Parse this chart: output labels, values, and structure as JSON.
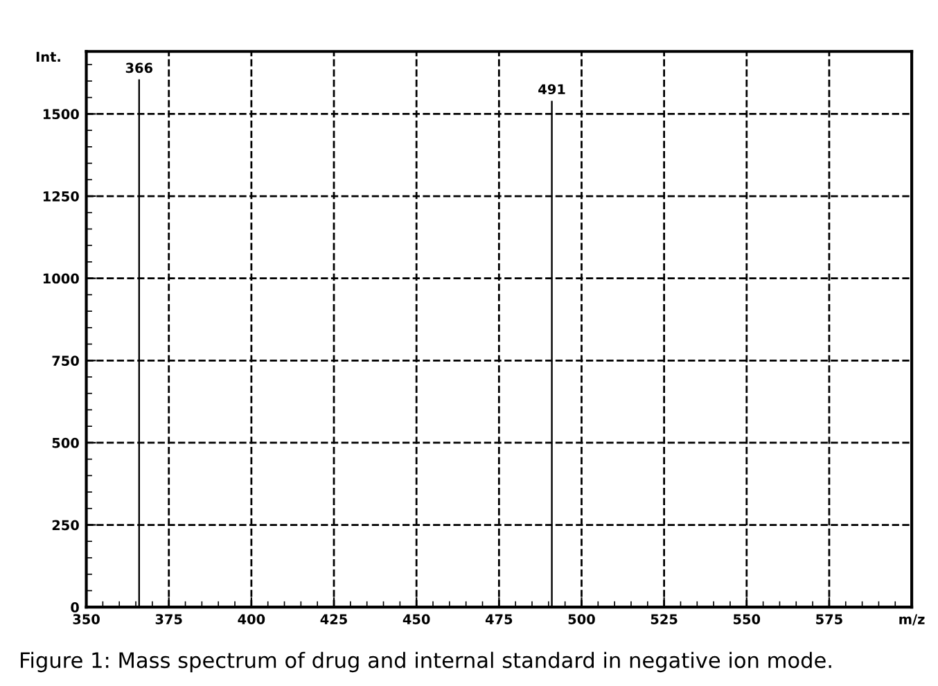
{
  "chart_data": {
    "type": "bar",
    "ylabel": "Int.",
    "x": [
      366,
      491
    ],
    "series": [
      {
        "color": "#000000",
        "values": [
          1605,
          1540
        ]
      }
    ],
    "xlim": [
      350,
      600
    ],
    "xticks": [
      350,
      375,
      400,
      425,
      450,
      475,
      500,
      525,
      550,
      575,
      {
        "value": 600,
        "label": "m/z"
      }
    ],
    "ylim": [
      0,
      1690
    ],
    "yticks": [
      0,
      250,
      500,
      750,
      1000,
      1250,
      1500
    ],
    "grid": true,
    "line_style": "dashed",
    "annotations": [
      {
        "text": "366",
        "x": 366,
        "y": 1605
      },
      {
        "text": "491",
        "x": 491,
        "y": 1540
      },
      "Figure 1: Mass spectrum of drug and internal standard in negative ion mode."
    ]
  }
}
